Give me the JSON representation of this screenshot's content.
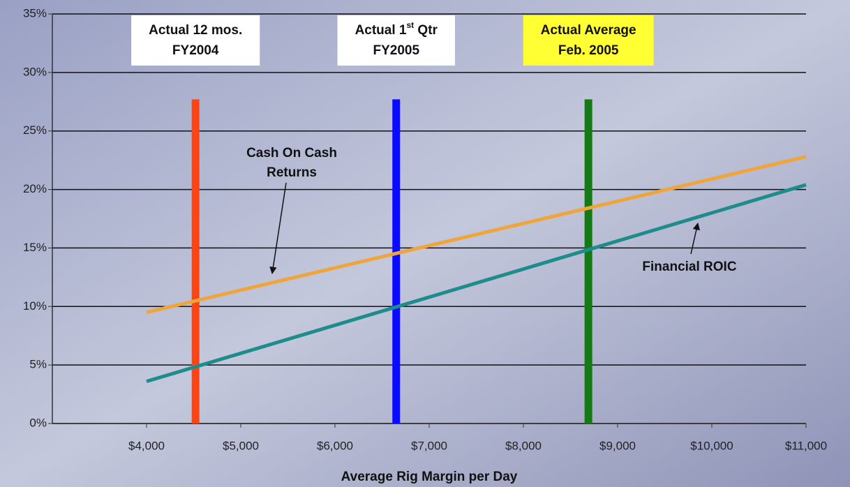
{
  "chart_data": {
    "type": "line",
    "xlabel": "Average Rig Margin per Day",
    "xlim": [
      3000,
      11000
    ],
    "ylim": [
      0,
      35
    ],
    "xticks": [
      {
        "value": 4000,
        "label": "$4,000"
      },
      {
        "value": 5000,
        "label": "$5,000"
      },
      {
        "value": 6000,
        "label": "$6,000"
      },
      {
        "value": 7000,
        "label": "$7,000"
      },
      {
        "value": 8000,
        "label": "$8,000"
      },
      {
        "value": 9000,
        "label": "$9,000"
      },
      {
        "value": 10000,
        "label": "$10,000"
      },
      {
        "value": 11000,
        "label": "$11,000"
      }
    ],
    "yticks": [
      {
        "value": 0,
        "label": "0%"
      },
      {
        "value": 5,
        "label": "5%"
      },
      {
        "value": 10,
        "label": "10%"
      },
      {
        "value": 15,
        "label": "15%"
      },
      {
        "value": 20,
        "label": "20%"
      },
      {
        "value": 25,
        "label": "25%"
      },
      {
        "value": 30,
        "label": "30%"
      },
      {
        "value": 35,
        "label": "35%"
      }
    ],
    "grid": true,
    "series": [
      {
        "name": [
          "Cash On Cash",
          "Returns"
        ],
        "color": "#f0a53a",
        "x": [
          4000,
          11000
        ],
        "values": [
          9.5,
          22.8
        ]
      },
      {
        "name": [
          "Financial ROIC"
        ],
        "color": "#1f8c8c",
        "x": [
          4000,
          11000
        ],
        "values": [
          3.6,
          20.4
        ]
      }
    ],
    "markers": [
      {
        "x": 4520,
        "top": 27.7,
        "color": "#ff4414",
        "box_color": "#ffffff",
        "label": [
          "Actual 12 mos.",
          "FY2004"
        ]
      },
      {
        "x": 6650,
        "top": 27.7,
        "color": "#0a0aff",
        "box_color": "#ffffff",
        "label": [
          {
            "text": "Actual 1",
            "sup": "st",
            "tail": " Qtr"
          },
          "FY2005"
        ]
      },
      {
        "x": 8690,
        "top": 27.7,
        "color": "#157a15",
        "box_color": "#ffff33",
        "label": [
          "Actual Average",
          "Feb. 2005"
        ]
      }
    ]
  }
}
